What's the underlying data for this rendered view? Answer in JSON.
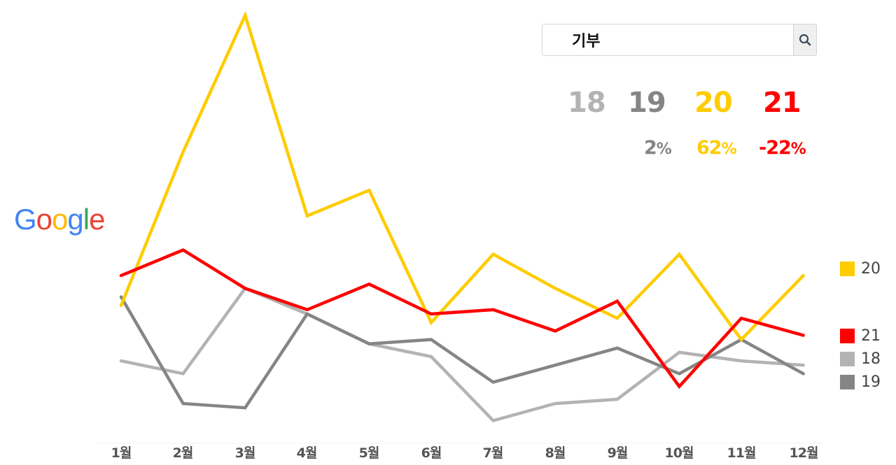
{
  "search": {
    "query": "기부",
    "button_icon": "search-icon"
  },
  "summary": {
    "years": [
      {
        "label": "18",
        "color": "#b3b3b3"
      },
      {
        "label": "19",
        "color": "#858585"
      },
      {
        "label": "20",
        "color": "#ffcc00"
      },
      {
        "label": "21",
        "color": "#ff0000"
      }
    ],
    "changes": [
      {
        "value": "2",
        "unit": "%",
        "color": "#858585"
      },
      {
        "value": "62",
        "unit": "%",
        "color": "#ffcc00"
      },
      {
        "value": "-22",
        "unit": "%",
        "color": "#ff0000"
      }
    ]
  },
  "logo": {
    "letters": [
      {
        "char": "G",
        "color": "#4285f4"
      },
      {
        "char": "o",
        "color": "#ea4335"
      },
      {
        "char": "o",
        "color": "#fbbc05"
      },
      {
        "char": "g",
        "color": "#4285f4"
      },
      {
        "char": "l",
        "color": "#34a853"
      },
      {
        "char": "e",
        "color": "#ea4335"
      }
    ]
  },
  "legend": [
    {
      "label": "20",
      "color": "#ffcc00"
    },
    {
      "label": "21",
      "color": "#ff0000"
    },
    {
      "label": "18",
      "color": "#b3b3b3"
    },
    {
      "label": "19",
      "color": "#858585"
    }
  ],
  "chart_data": {
    "type": "line",
    "title": "",
    "xlabel": "",
    "ylabel": "",
    "ylim": [
      0,
      100
    ],
    "grid": false,
    "legend_position": "right",
    "categories": [
      "1월",
      "2월",
      "3월",
      "4월",
      "5월",
      "6월",
      "7월",
      "8월",
      "9월",
      "10월",
      "11월",
      "12월"
    ],
    "series": [
      {
        "name": "18",
        "color": "#b3b3b3",
        "values": [
          19,
          16,
          36,
          30,
          23,
          20,
          5,
          9,
          10,
          21,
          19,
          18
        ]
      },
      {
        "name": "19",
        "color": "#858585",
        "values": [
          34,
          9,
          8,
          30,
          23,
          24,
          14,
          18,
          22,
          16,
          24,
          16
        ]
      },
      {
        "name": "20",
        "color": "#ffcc00",
        "values": [
          32,
          68,
          100,
          53,
          59,
          28,
          44,
          36,
          29,
          44,
          24,
          39
        ]
      },
      {
        "name": "21",
        "color": "#ff0000",
        "values": [
          39,
          45,
          36,
          31,
          37,
          30,
          31,
          26,
          33,
          13,
          29,
          25
        ]
      }
    ]
  }
}
